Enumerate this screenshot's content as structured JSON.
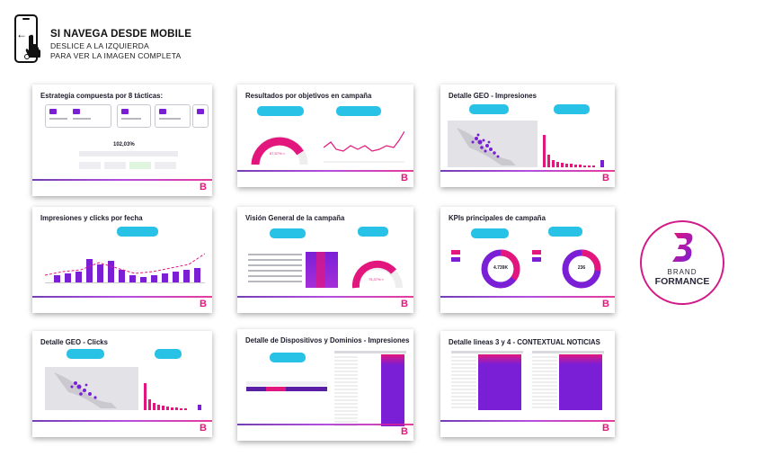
{
  "header": {
    "title": "SI NAVEGA DESDE MOBILE",
    "line1": "DESLICE A LA IZQUIERDA",
    "line2": "PARA VER LA IMAGEN COMPLETA"
  },
  "logo": {
    "brand": "BRAND",
    "formance": "FORMANCE"
  },
  "slides": [
    {
      "title": "Estrategia compuesta por 8 tácticas:",
      "percent": "102,03%"
    },
    {
      "title": "Resultados por objetivos en campaña",
      "percent": "87,57% ≈"
    },
    {
      "title": "Detalle GEO - Impresiones"
    },
    {
      "title": "Impresiones y clicks por fecha"
    },
    {
      "title": "Visión General de la campaña",
      "percent": "75,37% ≈"
    },
    {
      "title": "KPIs principales de campaña",
      "kpi1": "4.739K",
      "kpi2": "236"
    },
    {
      "title": "Detalle GEO - Clicks"
    },
    {
      "title": "Detalle de Dispositivos y Dominios - Impresiones"
    },
    {
      "title": "Detalle lineas 3 y 4 - CONTEXTUAL NOTICIAS"
    }
  ],
  "colors": {
    "magenta": "#e2167d",
    "purple": "#7a1fd6",
    "cyan": "#28c2e6"
  }
}
